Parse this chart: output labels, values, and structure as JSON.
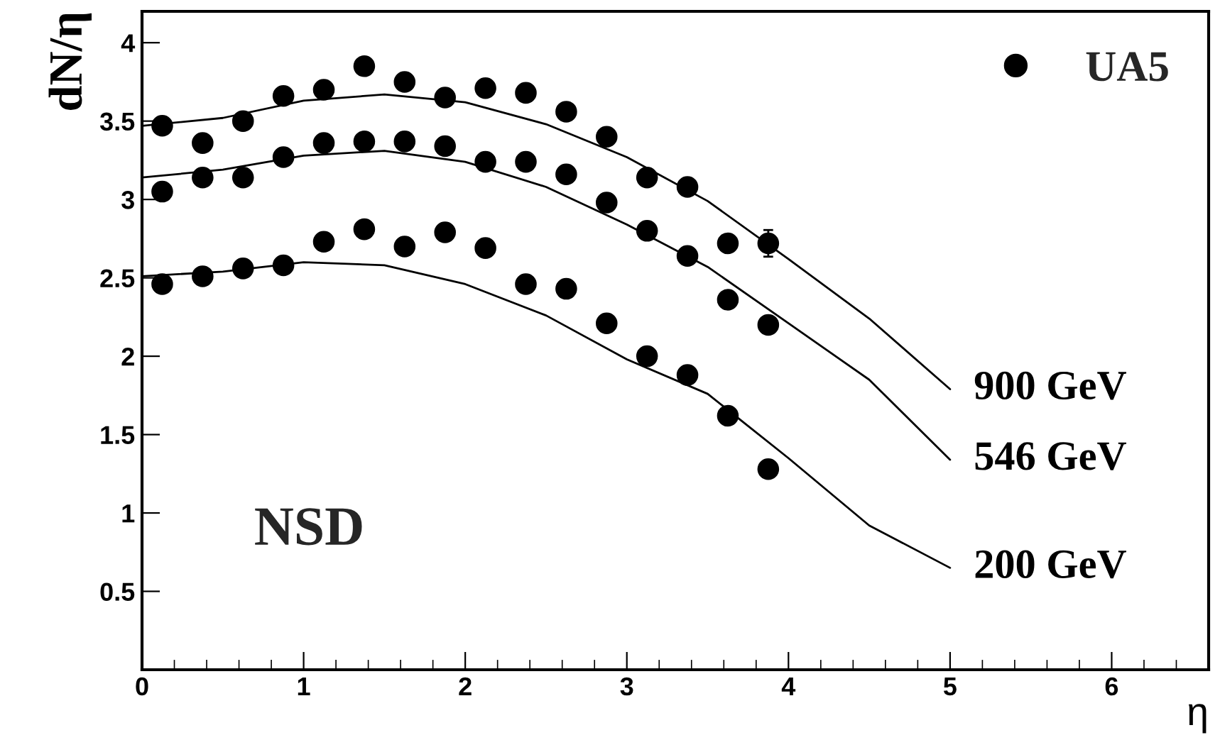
{
  "chart_data": {
    "type": "scatter",
    "xlabel": "η",
    "ylabel": "dN/η",
    "xlim": [
      0,
      6.6
    ],
    "ylim": [
      0,
      4.2
    ],
    "xticks": [
      0,
      1,
      2,
      3,
      4,
      5,
      6
    ],
    "yticks": [
      0.5,
      1,
      1.5,
      2,
      2.5,
      3,
      3.5,
      4
    ],
    "grid": false,
    "legend": "top right",
    "annotations": [
      "NSD"
    ],
    "series": [
      {
        "name": "UA5",
        "marker": "circle",
        "color": "#000000",
        "x": [
          0.125,
          0.375,
          0.625,
          0.875,
          1.125,
          1.375,
          1.625,
          1.875,
          2.125,
          2.375,
          2.625,
          2.875,
          3.125,
          3.375,
          3.625,
          3.875,
          0.125,
          0.375,
          0.625,
          0.875,
          1.125,
          1.375,
          1.625,
          1.875,
          2.125,
          2.375,
          2.625,
          2.875,
          3.125,
          3.375,
          3.625,
          3.875,
          0.125,
          0.375,
          0.625,
          0.875,
          1.125,
          1.375,
          1.625,
          1.875,
          2.125,
          2.375,
          2.625,
          2.875,
          3.125,
          3.375,
          3.625,
          3.875
        ],
        "values": [
          3.47,
          3.36,
          3.5,
          3.66,
          3.7,
          3.85,
          3.75,
          3.65,
          3.71,
          3.68,
          3.56,
          3.4,
          3.14,
          3.08,
          2.72,
          2.72,
          3.05,
          3.14,
          3.14,
          3.27,
          3.36,
          3.37,
          3.37,
          3.34,
          3.24,
          3.24,
          3.16,
          2.98,
          2.8,
          2.64,
          2.36,
          2.2,
          2.46,
          2.51,
          2.56,
          2.58,
          2.73,
          2.81,
          2.7,
          2.79,
          2.69,
          2.46,
          2.43,
          2.21,
          2.0,
          1.88,
          1.62,
          1.28
        ],
        "errors": [
          null,
          null,
          null,
          null,
          null,
          null,
          null,
          null,
          null,
          null,
          null,
          null,
          null,
          null,
          null,
          0.085,
          null,
          null,
          null,
          null,
          null,
          null,
          null,
          null,
          null,
          null,
          null,
          null,
          null,
          null,
          null,
          null,
          null,
          null,
          null,
          null,
          null,
          null,
          null,
          null,
          null,
          null,
          null,
          null,
          null,
          null,
          null,
          null
        ]
      },
      {
        "name": "900 GeV",
        "type": "line",
        "marker": "none",
        "color": "#000000",
        "x": [
          0,
          0.5,
          1,
          1.5,
          2,
          2.5,
          3,
          3.5,
          4,
          4.5,
          5
        ],
        "values": [
          3.47,
          3.52,
          3.63,
          3.67,
          3.62,
          3.48,
          3.27,
          2.99,
          2.62,
          2.24,
          1.79
        ]
      },
      {
        "name": "546 GeV",
        "type": "line",
        "marker": "none",
        "color": "#000000",
        "x": [
          0,
          0.5,
          1,
          1.5,
          2,
          2.5,
          3,
          3.5,
          4,
          4.5,
          5
        ],
        "values": [
          3.14,
          3.19,
          3.28,
          3.31,
          3.24,
          3.08,
          2.84,
          2.57,
          2.21,
          1.85,
          1.34
        ]
      },
      {
        "name": "200 GeV",
        "type": "line",
        "marker": "none",
        "color": "#000000",
        "x": [
          0,
          0.5,
          1,
          1.5,
          2,
          2.5,
          3,
          3.5,
          4,
          4.5,
          5
        ],
        "values": [
          2.51,
          2.54,
          2.6,
          2.58,
          2.46,
          2.26,
          1.98,
          1.76,
          1.35,
          0.92,
          0.65
        ]
      }
    ]
  }
}
